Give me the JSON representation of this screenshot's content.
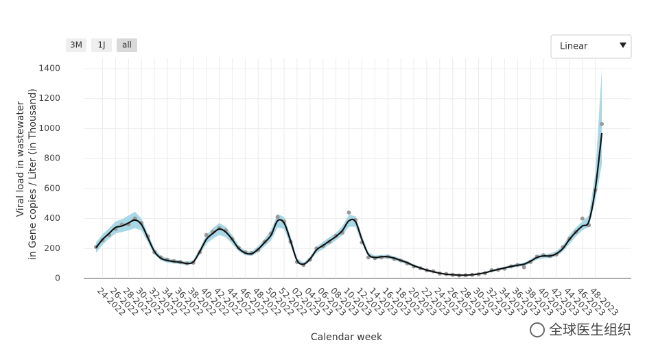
{
  "chart_data": {
    "type": "band-line",
    "y_label": [
      "Viral load in wastewater",
      "in Gene copies / Liter (in Thousand)"
    ],
    "x_label": "Calendar week",
    "categories": [
      null,
      "24-2022",
      null,
      "26-2022",
      null,
      "28-2022",
      null,
      "30-2022",
      null,
      "32-2022",
      null,
      "34-2022",
      null,
      "36-2022",
      null,
      "38-2022",
      null,
      "40-2022",
      null,
      "42-2022",
      null,
      "44-2022",
      null,
      "46-2022",
      null,
      "48-2022",
      null,
      "50-2022",
      null,
      "52-2022",
      null,
      "02-2023",
      null,
      "04-2023",
      null,
      "06-2023",
      null,
      "08-2023",
      null,
      "10-2023",
      null,
      "12-2023",
      null,
      "14-2023",
      null,
      "16-2023",
      null,
      "18-2023",
      null,
      "20-2023",
      null,
      "22-2023",
      null,
      "24-2023",
      null,
      "26-2023",
      null,
      "28-2023",
      null,
      "30-2023",
      null,
      "32-2023",
      null,
      "34-2023",
      null,
      "36-2023",
      null,
      "38-2023",
      null,
      "40-2023",
      null,
      "42-2023",
      null,
      "44-2023",
      null,
      "46-2023",
      null,
      "48-2023",
      null
    ],
    "line": {
      "color": "#111111",
      "values": [
        205,
        260,
        300,
        340,
        350,
        370,
        390,
        360,
        270,
        180,
        135,
        120,
        113,
        108,
        100,
        110,
        180,
        260,
        300,
        330,
        310,
        260,
        200,
        170,
        165,
        195,
        240,
        290,
        385,
        370,
        250,
        120,
        95,
        130,
        190,
        220,
        250,
        280,
        320,
        385,
        380,
        260,
        160,
        140,
        145,
        145,
        135,
        120,
        105,
        85,
        70,
        55,
        45,
        35,
        28,
        25,
        22,
        22,
        25,
        30,
        38,
        50,
        60,
        70,
        80,
        88,
        95,
        115,
        140,
        150,
        150,
        165,
        200,
        260,
        310,
        350,
        380,
        600,
        970
      ]
    },
    "band": {
      "color": "#a8d8e6",
      "lower": [
        170,
        225,
        265,
        300,
        310,
        320,
        335,
        320,
        240,
        160,
        120,
        105,
        100,
        95,
        90,
        98,
        160,
        230,
        265,
        290,
        275,
        230,
        180,
        155,
        150,
        175,
        215,
        255,
        340,
        330,
        220,
        105,
        85,
        115,
        170,
        195,
        225,
        255,
        290,
        345,
        345,
        235,
        145,
        128,
        132,
        132,
        122,
        108,
        94,
        76,
        62,
        48,
        39,
        30,
        23,
        20,
        18,
        18,
        20,
        25,
        32,
        43,
        52,
        61,
        70,
        77,
        84,
        102,
        125,
        135,
        135,
        148,
        180,
        230,
        280,
        320,
        345,
        520,
        760
      ],
      "upper": [
        240,
        295,
        335,
        380,
        395,
        420,
        445,
        400,
        300,
        200,
        150,
        135,
        126,
        121,
        112,
        122,
        200,
        290,
        335,
        370,
        345,
        290,
        220,
        185,
        180,
        215,
        265,
        325,
        430,
        410,
        280,
        135,
        105,
        145,
        210,
        245,
        275,
        305,
        350,
        425,
        415,
        285,
        175,
        152,
        158,
        158,
        148,
        132,
        116,
        94,
        78,
        62,
        51,
        40,
        33,
        30,
        26,
        26,
        30,
        35,
        44,
        57,
        68,
        79,
        90,
        99,
        106,
        128,
        155,
        165,
        165,
        182,
        220,
        290,
        340,
        380,
        420,
        700,
        1400
      ]
    },
    "points": {
      "color": "#9a9a9a",
      "values": [
        210,
        255,
        290,
        330,
        360,
        360,
        400,
        370,
        280,
        175,
        140,
        125,
        115,
        110,
        100,
        105,
        175,
        290,
        310,
        335,
        320,
        265,
        205,
        175,
        170,
        190,
        245,
        300,
        410,
        380,
        245,
        110,
        90,
        125,
        200,
        215,
        245,
        285,
        305,
        440,
        390,
        240,
        140,
        135,
        140,
        145,
        130,
        120,
        100,
        80,
        68,
        55,
        48,
        33,
        30,
        24,
        20,
        21,
        24,
        28,
        35,
        55,
        58,
        65,
        80,
        90,
        75,
        110,
        145,
        155,
        150,
        160,
        210,
        265,
        310,
        400,
        355,
        590,
        1030
      ]
    },
    "ylim": [
      0,
      1400
    ],
    "yticks": [
      0,
      200,
      400,
      600,
      800,
      1000,
      1200,
      1400
    ],
    "grid": true
  },
  "controls": {
    "range_buttons": [
      "3M",
      "1J",
      "all"
    ],
    "active_button": 2,
    "scale_select": "Linear"
  },
  "watermark": "全球医生组织"
}
